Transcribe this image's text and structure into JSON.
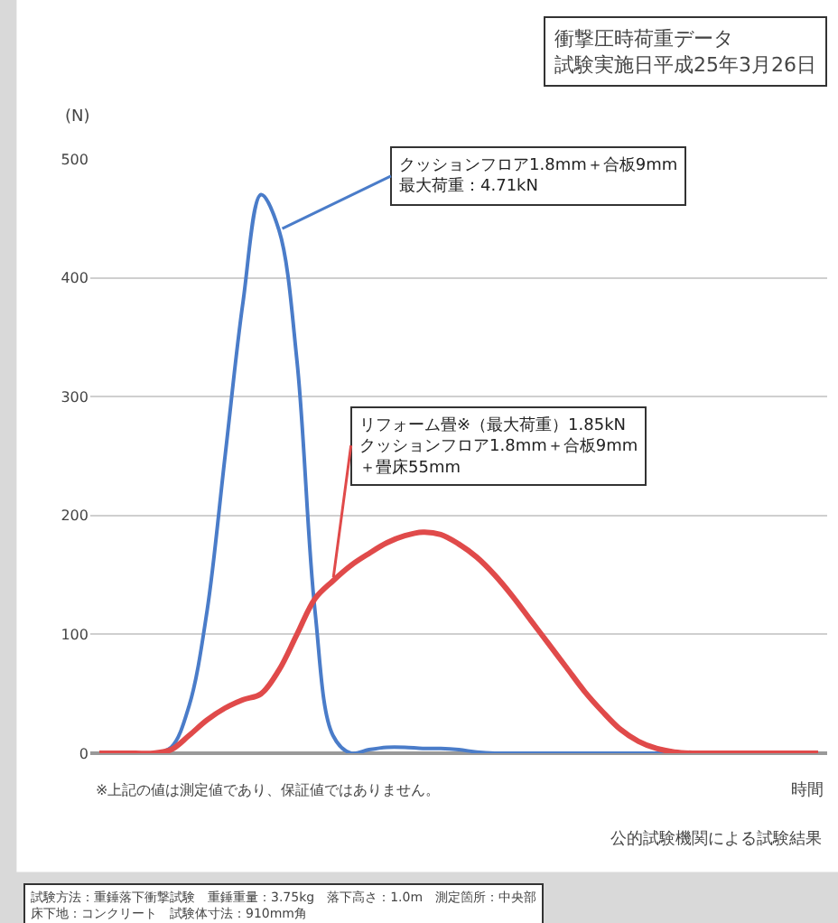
{
  "chart_data": {
    "type": "line",
    "title": "衝撃圧時荷重データ",
    "subtitle": "試験実施日平成25年3月26日",
    "ylabel": "(N)",
    "xlabel": "時間",
    "categories": [
      null,
      null,
      null,
      null,
      null,
      null,
      null,
      null,
      null,
      null,
      null,
      null,
      null,
      null,
      null,
      null,
      null,
      null,
      null,
      null,
      null,
      null,
      null,
      null,
      null,
      null,
      null,
      null,
      null,
      null,
      null,
      null,
      null,
      null,
      null,
      null,
      null,
      null,
      null,
      null,
      null
    ],
    "series": [
      {
        "name": "クッションフロア1.8mm＋合板9mm\n最大荷重：4.71kN",
        "color": "#4a7cc9",
        "values": [
          null,
          null,
          null,
          0,
          5,
          40,
          120,
          250,
          380,
          470,
          440,
          330,
          120,
          15,
          0,
          3,
          5,
          5,
          4,
          4,
          3,
          1,
          0,
          0,
          0,
          0,
          0,
          0,
          0,
          0,
          0,
          0,
          0,
          0,
          null,
          null,
          null,
          null,
          null,
          null,
          null
        ]
      },
      {
        "name": "リフォーム畳※（最大荷重）1.85kN\nクッションフロア1.8mm＋合板9mm\n＋畳床55mm",
        "color": "#e04a4a",
        "values": [
          0,
          0,
          0,
          0,
          3,
          15,
          28,
          38,
          45,
          50,
          70,
          100,
          130,
          145,
          158,
          168,
          177,
          183,
          186,
          184,
          176,
          165,
          150,
          132,
          112,
          92,
          72,
          52,
          35,
          20,
          10,
          4,
          1,
          0,
          0,
          0,
          0,
          0,
          0,
          0,
          0
        ]
      }
    ],
    "ylim": [
      0,
      500
    ],
    "yticks": [
      0,
      100,
      200,
      300,
      400,
      500
    ],
    "grid": "y",
    "marker": "none",
    "line_style": "solid",
    "tick_labels": "y",
    "annotations": [
      "※上記の値は測定値であり、保証値ではありません。",
      "公的試験機関による試験結果",
      "試験方法：重錘落下衝撃試験　重錘重量：3.75kg　落下高さ：1.0m　測定箇所：中央部床下地：コンクリート　試験体寸法：910mm角"
    ]
  }
}
